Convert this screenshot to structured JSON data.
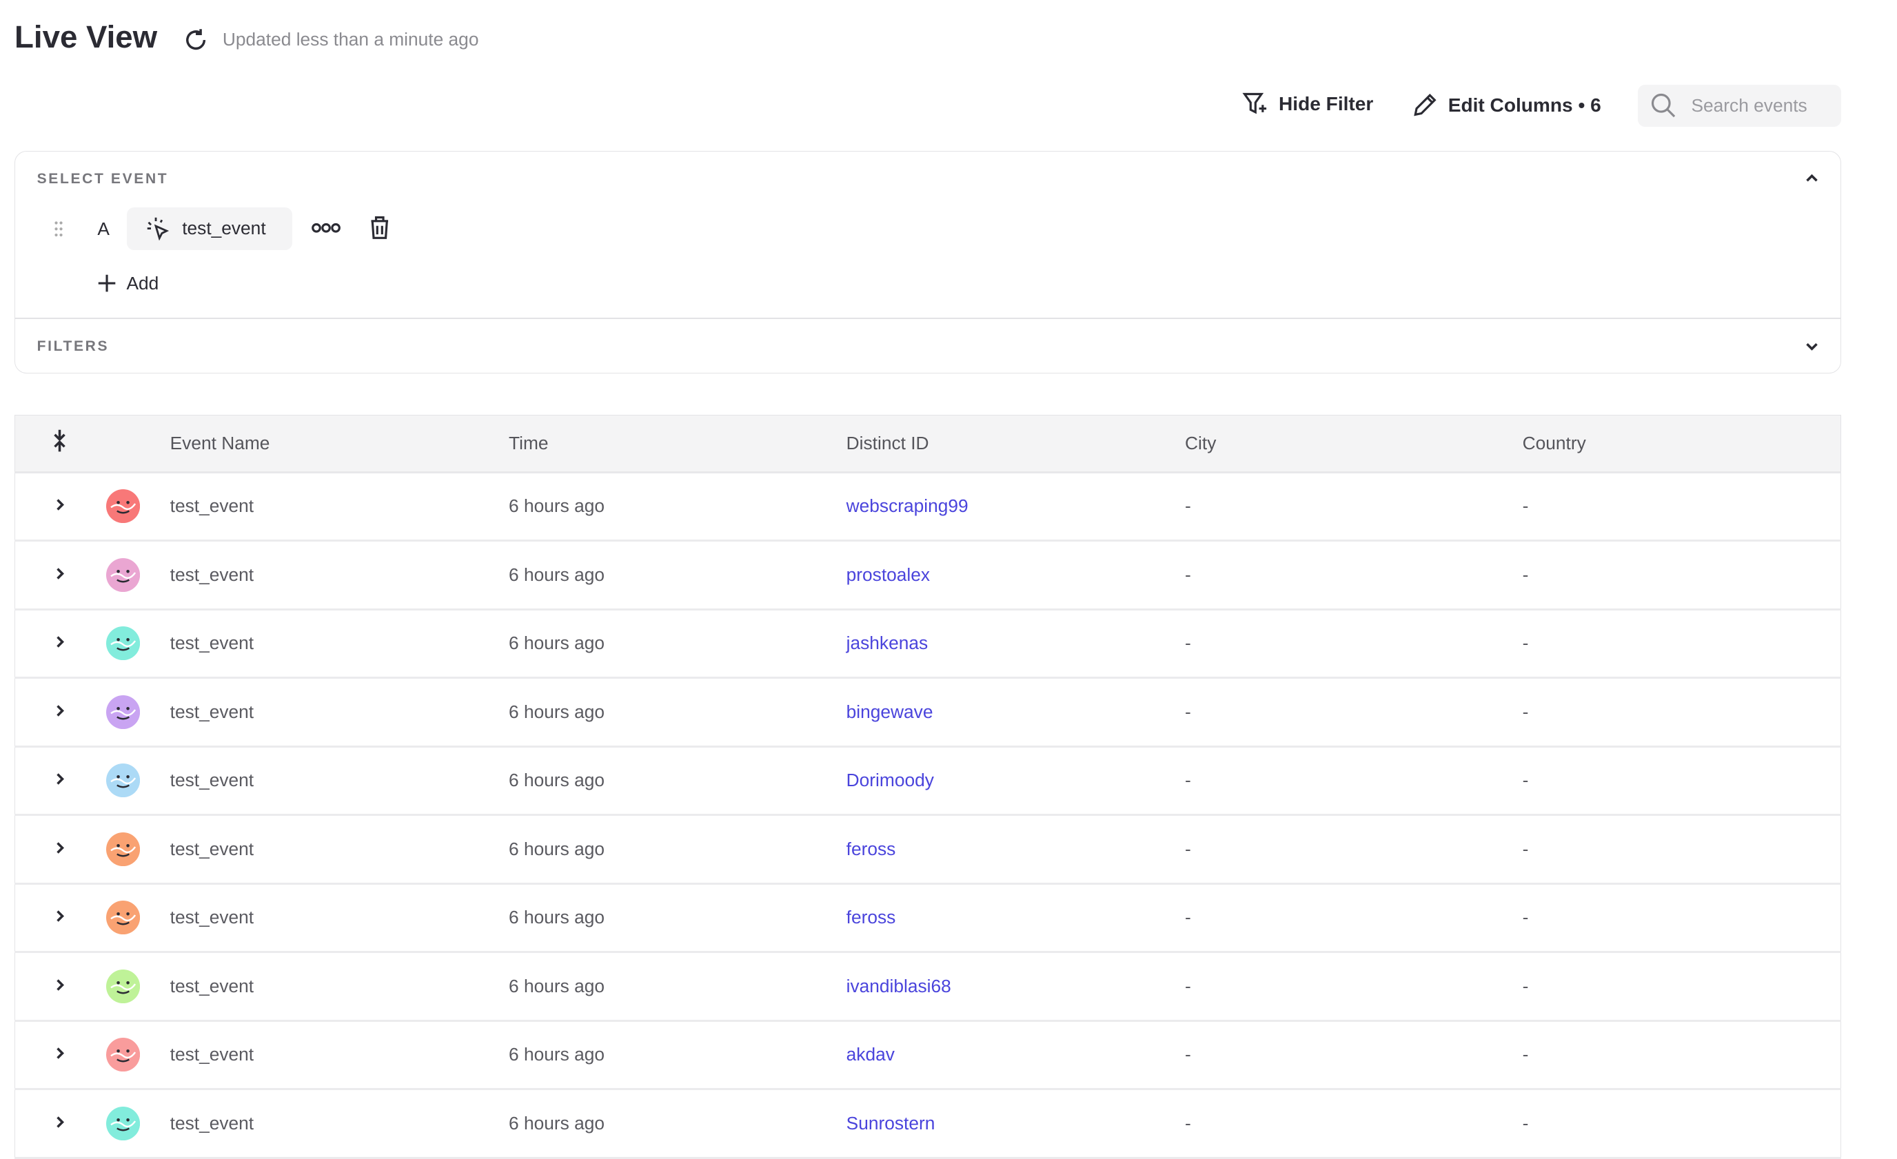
{
  "header": {
    "title": "Live View",
    "updated_text": "Updated less than a minute ago"
  },
  "toolbar": {
    "hide_filter_label": "Hide Filter",
    "edit_columns_label": "Edit Columns • 6",
    "search_placeholder": "Search events",
    "search_value": ""
  },
  "select_event": {
    "section_label": "SELECT EVENT",
    "letter": "A",
    "event_name": "test_event",
    "add_label": "Add"
  },
  "filters": {
    "section_label": "FILTERS"
  },
  "table": {
    "columns": [
      "Event Name",
      "Time",
      "Distinct ID",
      "City",
      "Country"
    ],
    "link_color": "#4a44dc",
    "rows": [
      {
        "event": "test_event",
        "time": "6 hours ago",
        "distinct_id": "webscraping99",
        "city": "-",
        "country": "-",
        "avatar_color": "#f87878"
      },
      {
        "event": "test_event",
        "time": "6 hours ago",
        "distinct_id": "prostoalex",
        "city": "-",
        "country": "-",
        "avatar_color": "#eaa6d2"
      },
      {
        "event": "test_event",
        "time": "6 hours ago",
        "distinct_id": "jashkenas",
        "city": "-",
        "country": "-",
        "avatar_color": "#82ecdc"
      },
      {
        "event": "test_event",
        "time": "6 hours ago",
        "distinct_id": "bingewave",
        "city": "-",
        "country": "-",
        "avatar_color": "#c9a4f2"
      },
      {
        "event": "test_event",
        "time": "6 hours ago",
        "distinct_id": "Dorimoody",
        "city": "-",
        "country": "-",
        "avatar_color": "#acdaf6"
      },
      {
        "event": "test_event",
        "time": "6 hours ago",
        "distinct_id": "feross",
        "city": "-",
        "country": "-",
        "avatar_color": "#f9a272"
      },
      {
        "event": "test_event",
        "time": "6 hours ago",
        "distinct_id": "feross",
        "city": "-",
        "country": "-",
        "avatar_color": "#f9a272"
      },
      {
        "event": "test_event",
        "time": "6 hours ago",
        "distinct_id": "ivandiblasi68",
        "city": "-",
        "country": "-",
        "avatar_color": "#bff298"
      },
      {
        "event": "test_event",
        "time": "6 hours ago",
        "distinct_id": "akdav",
        "city": "-",
        "country": "-",
        "avatar_color": "#f99c9c"
      },
      {
        "event": "test_event",
        "time": "6 hours ago",
        "distinct_id": "Sunrostern",
        "city": "-",
        "country": "-",
        "avatar_color": "#82ecdc"
      }
    ]
  }
}
